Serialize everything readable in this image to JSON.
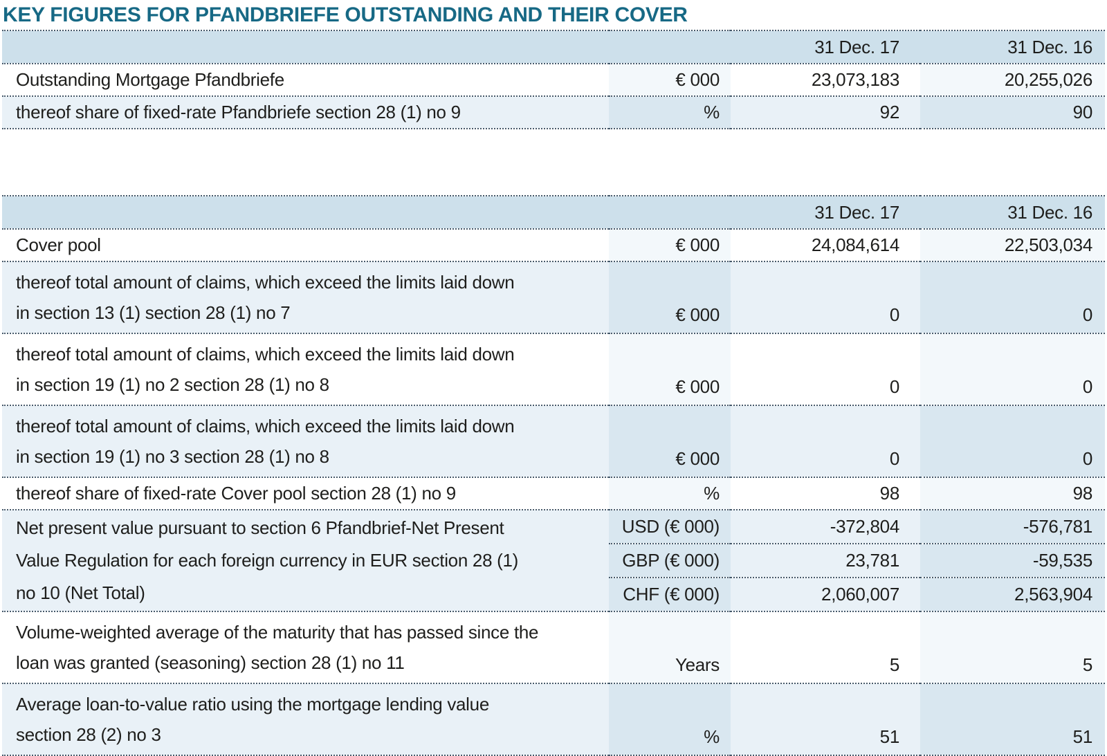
{
  "page": {
    "title": "KEY FIGURES FOR PFANDBRIEFE OUTSTANDING AND THEIR COVER"
  },
  "colors": {
    "title_text": "#176985",
    "header_band": "#cde0eb",
    "row_blue": "#e9f1f7",
    "row_blue_shaded": "#d9e7f0",
    "row_white": "#ffffff",
    "row_white_shaded": "#f3f8fb",
    "dotted_rule": "#46596a",
    "body_text": "#1e1e1c"
  },
  "pfandbriefe_table": {
    "col17": "31 Dec. 17",
    "col16": "31 Dec. 16",
    "rows": [
      {
        "label": "Outstanding Mortgage Pfandbriefe",
        "unit": "€ 000",
        "v17": "23,073,183",
        "v16": "20,255,026"
      },
      {
        "label": "thereof share of fixed-rate Pfandbriefe section 28 (1) no 9",
        "unit": "%",
        "v17": "92",
        "v16": "90"
      }
    ]
  },
  "cover_table": {
    "col17": "31 Dec. 17",
    "col16": "31 Dec. 16",
    "rows": [
      {
        "label": "Cover pool",
        "unit": "€ 000",
        "v17": "24,084,614",
        "v16": "22,503,034"
      },
      {
        "lines": [
          "thereof total amount of claims, which exceed the limits laid down",
          "in section 13 (1) section 28 (1) no 7"
        ],
        "unit": "€ 000",
        "v17": "0",
        "v16": "0"
      },
      {
        "lines": [
          "thereof total amount of claims, which exceed the limits laid down",
          "in section 19 (1) no 2 section 28 (1) no 8"
        ],
        "unit": "€ 000",
        "v17": "0",
        "v16": "0"
      },
      {
        "lines": [
          "thereof total amount of claims, which exceed the limits laid down",
          "in section 19 (1) no 3 section 28 (1) no 8"
        ],
        "unit": "€ 000",
        "v17": "0",
        "v16": "0"
      },
      {
        "label": "thereof share of fixed-rate Cover pool section 28 (1) no 9",
        "unit": "%",
        "v17": "98",
        "v16": "98"
      },
      {
        "lines": [
          "Net present value pursuant to section 6 Pfandbrief-Net Present",
          "Value Regulation for each foreign currency in EUR section 28 (1)",
          "no 10 (Net Total)"
        ],
        "subrows": [
          {
            "unit": "USD (€ 000)",
            "v17": "-372,804",
            "v16": "-576,781"
          },
          {
            "unit": "GBP (€ 000)",
            "v17": "23,781",
            "v16": "-59,535"
          },
          {
            "unit": "CHF (€ 000)",
            "v17": "2,060,007",
            "v16": "2,563,904"
          }
        ]
      },
      {
        "lines": [
          "Volume-weighted average of the maturity that has passed since the",
          "loan was granted (seasoning) section 28 (1) no 11"
        ],
        "unit": "Years",
        "v17": "5",
        "v16": "5"
      },
      {
        "lines": [
          "Average loan-to-value ratio using the mortgage lending value",
          "section 28 (2) no 3"
        ],
        "unit": "%",
        "v17": "51",
        "v16": "51"
      }
    ]
  }
}
